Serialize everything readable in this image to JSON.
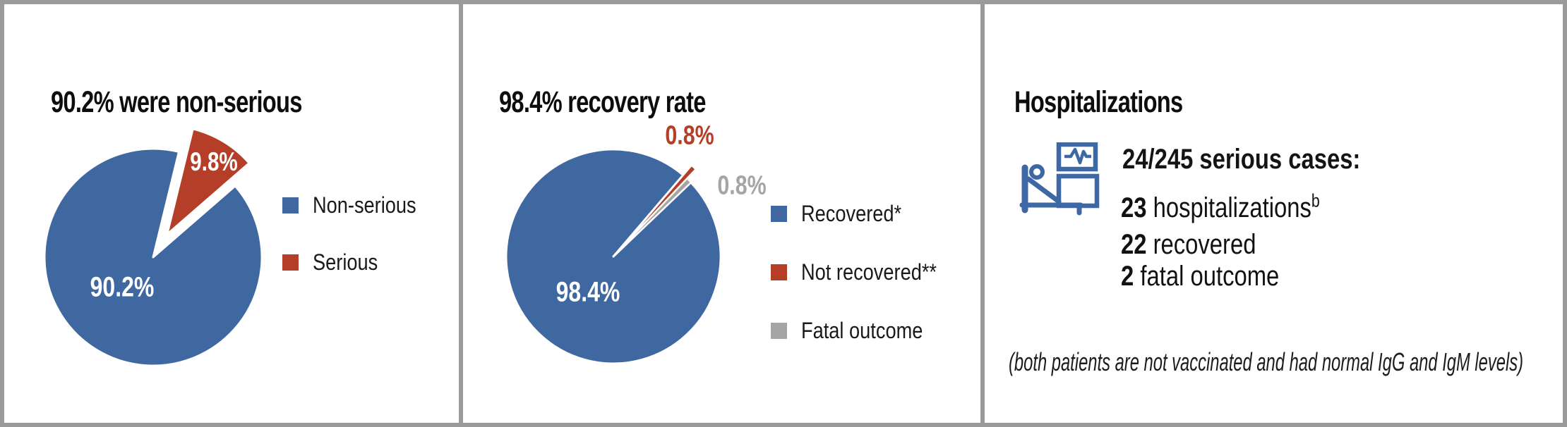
{
  "colors": {
    "frame": "#9a9a9a",
    "pie_blue": "#3f68a0",
    "pie_red": "#b43e28",
    "pie_gray": "#a5a5a5"
  },
  "chart_data": [
    {
      "type": "pie",
      "title": "90.2% were non-serious",
      "legend_position": "right",
      "slices": [
        {
          "label": "Non-serious",
          "value": 90.2,
          "data_label": "90.2%",
          "color": "#3f68a0",
          "exploded": false
        },
        {
          "label": "Serious",
          "value": 9.8,
          "data_label": "9.8%",
          "color": "#b43e28",
          "exploded": true
        }
      ]
    },
    {
      "type": "pie",
      "title": "98.4% recovery rate",
      "legend_position": "right",
      "slices": [
        {
          "label": "Recovered*",
          "value": 98.4,
          "data_label": "98.4%",
          "color": "#3f68a0",
          "exploded": false
        },
        {
          "label": "Not recovered**",
          "value": 0.8,
          "data_label": "0.8%",
          "color": "#b43e28",
          "exploded": true
        },
        {
          "label": "Fatal outcome",
          "value": 0.8,
          "data_label": "0.8%",
          "color": "#a5a5a5",
          "exploded": false
        }
      ]
    }
  ],
  "panels": {
    "hospitalizations": {
      "title": "Hospitalizations",
      "icon": "hospital-bed-icon",
      "icon_color": "#3e68a3",
      "heading": "24/245 serious cases:",
      "rows": [
        {
          "num": "23",
          "rest": " hospitalizations",
          "sup": "b"
        },
        {
          "num": "22",
          "rest": " recovered",
          "sup": ""
        },
        {
          "num": "2",
          "rest": " fatal outcome",
          "sup": ""
        }
      ],
      "footnote": "(both patients are not vaccinated and had normal IgG and IgM levels)"
    }
  }
}
